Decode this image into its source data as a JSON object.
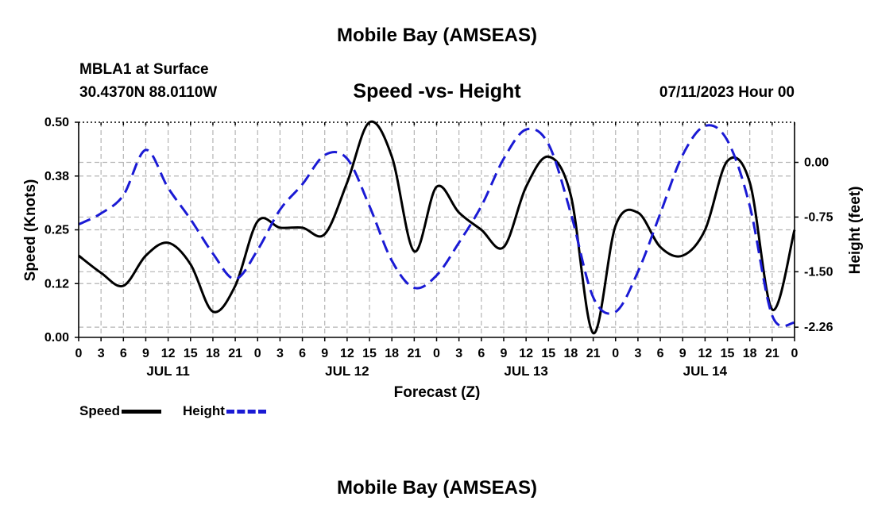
{
  "chart_data": {
    "type": "line",
    "title": "Mobile Bay (AMSEAS)",
    "footer_title": "Mobile Bay (AMSEAS)",
    "station": "MBLA1 at Surface",
    "location": "30.4370N  88.0110W",
    "subtitle": "Speed -vs- Height",
    "datetime": "07/11/2023 Hour 00",
    "xlabel": "Forecast (Z)",
    "ylabel_left": "Speed (Knots)",
    "ylabel_right": "Height (feet)",
    "x_tick_labels": [
      "0",
      "3",
      "6",
      "9",
      "12",
      "15",
      "18",
      "21",
      "0",
      "3",
      "6",
      "9",
      "12",
      "15",
      "18",
      "21",
      "0",
      "3",
      "6",
      "9",
      "12",
      "15",
      "18",
      "21",
      "0",
      "3",
      "6",
      "9",
      "12",
      "15",
      "18",
      "21",
      "0"
    ],
    "day_labels": [
      {
        "label": "JUL 11",
        "hour": 12
      },
      {
        "label": "JUL 12",
        "hour": 36
      },
      {
        "label": "JUL 13",
        "hour": 60
      },
      {
        "label": "JUL 14",
        "hour": 84
      }
    ],
    "xlim": [
      0,
      96
    ],
    "ylim_left": [
      0,
      0.5
    ],
    "left_ticks": [
      "0.00",
      "0.12",
      "0.25",
      "0.38",
      "0.50"
    ],
    "left_tick_values": [
      0,
      0.125,
      0.25,
      0.375,
      0.5
    ],
    "ylim_right": [
      -2.4,
      0.55
    ],
    "right_ticks": [
      "0.00",
      "-0.75",
      "-1.50",
      "-2.26"
    ],
    "right_tick_values": [
      0,
      -0.75,
      -1.5,
      -2.26
    ],
    "series": [
      {
        "name": "Speed",
        "color": "#000000",
        "style": "solid",
        "axis": "left",
        "points": [
          [
            0,
            0.19
          ],
          [
            3,
            0.15
          ],
          [
            6,
            0.12
          ],
          [
            9,
            0.19
          ],
          [
            12,
            0.22
          ],
          [
            15,
            0.17
          ],
          [
            18,
            0.06
          ],
          [
            21,
            0.12
          ],
          [
            24,
            0.27
          ],
          [
            27,
            0.255
          ],
          [
            30,
            0.255
          ],
          [
            33,
            0.24
          ],
          [
            36,
            0.36
          ],
          [
            39,
            0.5
          ],
          [
            42,
            0.42
          ],
          [
            45,
            0.2
          ],
          [
            48,
            0.35
          ],
          [
            51,
            0.29
          ],
          [
            54,
            0.25
          ],
          [
            57,
            0.21
          ],
          [
            60,
            0.35
          ],
          [
            63,
            0.42
          ],
          [
            66,
            0.33
          ],
          [
            69,
            0.01
          ],
          [
            72,
            0.26
          ],
          [
            75,
            0.29
          ],
          [
            78,
            0.21
          ],
          [
            81,
            0.19
          ],
          [
            84,
            0.25
          ],
          [
            87,
            0.41
          ],
          [
            90,
            0.36
          ],
          [
            93,
            0.065
          ],
          [
            96,
            0.25
          ]
        ]
      },
      {
        "name": "Height",
        "color": "#1a1ad4",
        "style": "dashed",
        "axis": "right",
        "points": [
          [
            0,
            -0.85
          ],
          [
            3,
            -0.7
          ],
          [
            6,
            -0.45
          ],
          [
            9,
            0.17
          ],
          [
            12,
            -0.35
          ],
          [
            15,
            -0.78
          ],
          [
            18,
            -1.25
          ],
          [
            21,
            -1.6
          ],
          [
            24,
            -1.2
          ],
          [
            27,
            -0.65
          ],
          [
            30,
            -0.3
          ],
          [
            33,
            0.1
          ],
          [
            36,
            0.05
          ],
          [
            39,
            -0.6
          ],
          [
            42,
            -1.35
          ],
          [
            45,
            -1.72
          ],
          [
            48,
            -1.55
          ],
          [
            51,
            -1.1
          ],
          [
            54,
            -0.6
          ],
          [
            57,
            0.05
          ],
          [
            60,
            0.45
          ],
          [
            63,
            0.25
          ],
          [
            66,
            -0.7
          ],
          [
            69,
            -1.85
          ],
          [
            72,
            -2.05
          ],
          [
            75,
            -1.5
          ],
          [
            78,
            -0.7
          ],
          [
            81,
            0.1
          ],
          [
            84,
            0.5
          ],
          [
            87,
            0.3
          ],
          [
            90,
            -0.6
          ],
          [
            93,
            -2.1
          ],
          [
            96,
            -2.2
          ]
        ]
      }
    ],
    "legend": [
      {
        "label": "Speed",
        "color": "#000000",
        "style": "solid"
      },
      {
        "label": "Height",
        "color": "#1a1ad4",
        "style": "dashed"
      }
    ],
    "grid": true
  }
}
